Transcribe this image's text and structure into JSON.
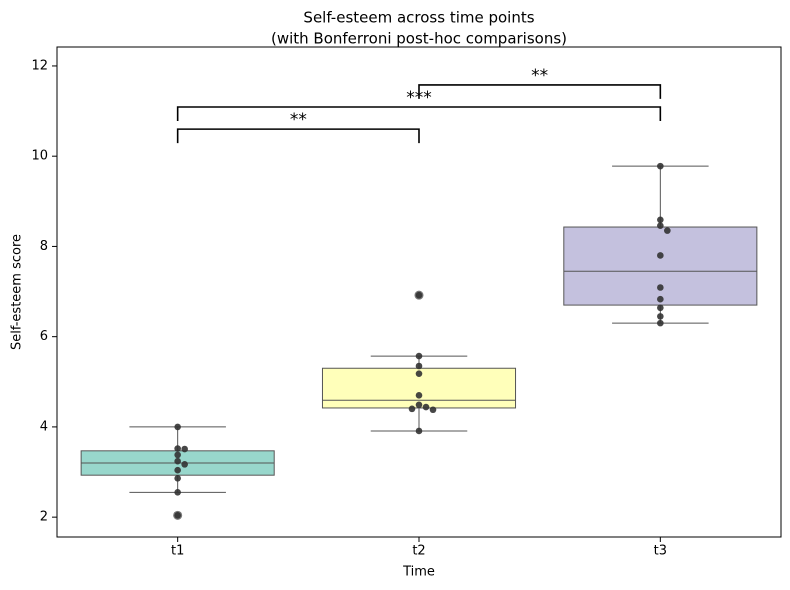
{
  "chart_data": {
    "type": "box",
    "title": "Self-esteem across time points",
    "subtitle": "(with Bonferroni post-hoc comparisons)",
    "xlabel": "Time",
    "ylabel": "Self-esteem score",
    "categories": [
      "t1",
      "t2",
      "t3"
    ],
    "colors": [
      "#8dd3c7",
      "#ffffb3",
      "#bebada"
    ],
    "boxes": [
      {
        "whislo": 2.55,
        "q1": 2.93,
        "median": 3.2,
        "q3": 3.47,
        "whishi": 4.0,
        "fliers": [
          2.04
        ]
      },
      {
        "whislo": 3.91,
        "q1": 4.42,
        "median": 4.59,
        "q3": 5.3,
        "whishi": 5.57,
        "fliers": [
          6.92
        ]
      },
      {
        "whislo": 6.3,
        "q1": 6.7,
        "median": 7.45,
        "q3": 8.43,
        "whishi": 9.78,
        "fliers": []
      }
    ],
    "points": [
      [
        4.0,
        3.52,
        3.51,
        3.38,
        3.24,
        3.17,
        3.04,
        2.86,
        2.55,
        2.04
      ],
      [
        6.92,
        5.57,
        5.35,
        5.18,
        4.7,
        4.49,
        4.44,
        4.4,
        4.38,
        3.91
      ],
      [
        9.78,
        8.59,
        8.46,
        8.35,
        7.8,
        7.09,
        6.83,
        6.64,
        6.45,
        6.3
      ]
    ],
    "comparisons": [
      {
        "groups": [
          "t1",
          "t2"
        ],
        "y": 10.6,
        "label": "**"
      },
      {
        "groups": [
          "t1",
          "t3"
        ],
        "y": 11.09,
        "label": "***"
      },
      {
        "groups": [
          "t2",
          "t3"
        ],
        "y": 11.58,
        "label": "**"
      }
    ],
    "ylim": [
      1.56,
      12.42
    ],
    "yticks": [
      2,
      4,
      6,
      8,
      10,
      12
    ]
  }
}
